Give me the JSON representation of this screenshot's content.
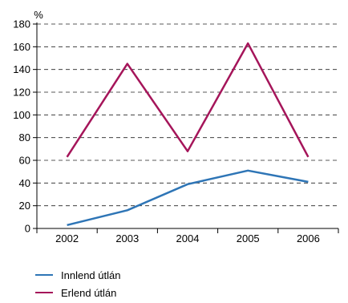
{
  "chart_data": {
    "type": "line",
    "unit_label": "%",
    "categories": [
      "2002",
      "2003",
      "2004",
      "2005",
      "2006"
    ],
    "ylim": [
      0,
      180
    ],
    "yticks": [
      0,
      20,
      40,
      60,
      80,
      100,
      120,
      140,
      160,
      180
    ],
    "grid": "dashed horizontal",
    "legend_position": "bottom-left",
    "series": [
      {
        "name": "Innlend útlán",
        "color": "#2e75b6",
        "values": [
          3,
          16,
          39,
          51,
          41
        ]
      },
      {
        "name": "Erlend útlán",
        "color": "#a5155a",
        "values": [
          63,
          145,
          68,
          163,
          63
        ]
      }
    ]
  }
}
